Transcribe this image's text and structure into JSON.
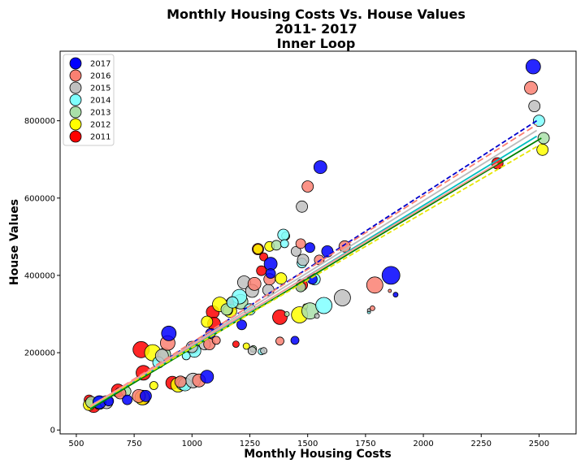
{
  "chart_data": {
    "type": "scatter",
    "title_lines": [
      "Monthly Housing Costs Vs. House Values",
      "2011- 2017",
      "Inner Loop"
    ],
    "xlabel": "Monthly Housing Costs",
    "ylabel": "House Values",
    "xlim": [
      430,
      2660
    ],
    "ylim": [
      -10000,
      980000
    ],
    "xticks": [
      500,
      750,
      1000,
      1250,
      1500,
      1750,
      2000,
      2250,
      2500
    ],
    "yticks": [
      0,
      200000,
      400000,
      600000,
      800000
    ],
    "grid": false,
    "legend_position": "top-left",
    "series": [
      {
        "name": "2017",
        "color": "#0000ff",
        "trend_color": "#0000cc",
        "trend_dash": "6,3",
        "trend": [
          [
            560,
            55000
          ],
          [
            2490,
            800000
          ]
        ],
        "points": [
          [
            2475,
            940000,
            9
          ],
          [
            1555,
            680000,
            8
          ],
          [
            1860,
            400000,
            11
          ],
          [
            1340,
            430000,
            8
          ],
          [
            1585,
            462000,
            7
          ],
          [
            1510,
            472000,
            6
          ],
          [
            1215,
            272000,
            6
          ],
          [
            1445,
            232000,
            5
          ],
          [
            1080,
            250000,
            6
          ],
          [
            1065,
            138000,
            8
          ],
          [
            900,
            250000,
            9
          ],
          [
            800,
            88000,
            7
          ],
          [
            720,
            78000,
            6
          ],
          [
            600,
            72000,
            8
          ],
          [
            1880,
            350000,
            3
          ],
          [
            1340,
            405000,
            6
          ],
          [
            1520,
            390000,
            6
          ],
          [
            640,
            75000,
            6
          ]
        ]
      },
      {
        "name": "2016",
        "color": "#fa8072",
        "trend_color": "#fa8072",
        "trend_dash": "8,4",
        "trend": [
          [
            560,
            60000
          ],
          [
            2490,
            790000
          ]
        ],
        "points": [
          [
            2465,
            885000,
            8
          ],
          [
            1500,
            630000,
            7
          ],
          [
            1790,
            375000,
            10
          ],
          [
            1470,
            482000,
            6
          ],
          [
            1660,
            475000,
            7
          ],
          [
            1550,
            440000,
            6
          ],
          [
            1335,
            390000,
            7
          ],
          [
            1270,
            378000,
            8
          ],
          [
            1075,
            222000,
            7
          ],
          [
            1030,
            128000,
            8
          ],
          [
            895,
            225000,
            9
          ],
          [
            950,
            125000,
            7
          ],
          [
            770,
            88000,
            8
          ],
          [
            1380,
            230000,
            5
          ],
          [
            1105,
            232000,
            5
          ],
          [
            1780,
            315000,
            3
          ],
          [
            1855,
            360000,
            2
          ],
          [
            690,
            95000,
            7
          ]
        ]
      },
      {
        "name": "2015",
        "color": "#c0c0c0",
        "trend_color": "#bbbbbb",
        "trend_dash": "",
        "trend": [
          [
            560,
            58000
          ],
          [
            2490,
            775000
          ]
        ],
        "points": [
          [
            2480,
            838000,
            7
          ],
          [
            1475,
            578000,
            7
          ],
          [
            1650,
            342000,
            10
          ],
          [
            1225,
            382000,
            8
          ],
          [
            1260,
            360000,
            8
          ],
          [
            1450,
            462000,
            6
          ],
          [
            1480,
            440000,
            7
          ],
          [
            1330,
            362000,
            7
          ],
          [
            1000,
            215000,
            7
          ],
          [
            1055,
            222000,
            7
          ],
          [
            870,
            192000,
            8
          ],
          [
            1005,
            128000,
            9
          ],
          [
            1260,
            205000,
            5
          ],
          [
            1310,
            205000,
            4
          ],
          [
            1540,
            295000,
            3
          ],
          [
            1765,
            310000,
            2
          ],
          [
            630,
            72000,
            8
          ]
        ]
      },
      {
        "name": "2014",
        "color": "#7fffff",
        "trend_color": "#00bfbf",
        "trend_dash": "",
        "trend": [
          [
            560,
            55000
          ],
          [
            2490,
            760000
          ]
        ],
        "points": [
          [
            2500,
            800000,
            7
          ],
          [
            1395,
            505000,
            7
          ],
          [
            1570,
            322000,
            10
          ],
          [
            1400,
            482000,
            5
          ],
          [
            1475,
            432000,
            6
          ],
          [
            1530,
            390000,
            7
          ],
          [
            1205,
            345000,
            9
          ],
          [
            1175,
            330000,
            7
          ],
          [
            1250,
            312000,
            7
          ],
          [
            1010,
            205000,
            8
          ],
          [
            975,
            192000,
            5
          ],
          [
            855,
            175000,
            7
          ],
          [
            970,
            118000,
            8
          ],
          [
            1300,
            203000,
            4
          ],
          [
            1765,
            305000,
            2
          ],
          [
            600,
            70000,
            8
          ]
        ]
      },
      {
        "name": "2013",
        "color": "#a9dfa9",
        "trend_color": "#008000",
        "trend_dash": "",
        "trend": [
          [
            560,
            54000
          ],
          [
            2510,
            755000
          ]
        ],
        "points": [
          [
            2520,
            755000,
            7
          ],
          [
            1405,
            502000,
            5
          ],
          [
            1510,
            308000,
            10
          ],
          [
            1365,
            478000,
            6
          ],
          [
            1470,
            370000,
            6
          ],
          [
            1210,
            332000,
            9
          ],
          [
            1150,
            312000,
            7
          ],
          [
            1265,
            210000,
            4
          ],
          [
            1005,
            212000,
            7
          ],
          [
            880,
            195000,
            8
          ],
          [
            960,
            120000,
            8
          ],
          [
            565,
            72000,
            7
          ],
          [
            715,
            100000,
            6
          ],
          [
            1410,
            300000,
            3
          ]
        ]
      },
      {
        "name": "2012",
        "color": "#ffff00",
        "trend_color": "#e6e600",
        "trend_dash": "6,3",
        "trend": [
          [
            560,
            60000
          ],
          [
            2510,
            740000
          ]
        ],
        "points": [
          [
            2515,
            725000,
            7
          ],
          [
            1335,
            475000,
            6
          ],
          [
            1465,
            298000,
            10
          ],
          [
            1385,
            392000,
            7
          ],
          [
            1285,
            468000,
            6
          ],
          [
            1165,
            308000,
            8
          ],
          [
            1120,
            325000,
            9
          ],
          [
            1235,
            217000,
            4
          ],
          [
            1065,
            280000,
            7
          ],
          [
            830,
            200000,
            10
          ],
          [
            835,
            115000,
            5
          ],
          [
            940,
            117000,
            9
          ],
          [
            785,
            84000,
            9
          ],
          [
            555,
            65000,
            7
          ],
          [
            1155,
            310000,
            6
          ],
          [
            1490,
            320000,
            3
          ]
        ]
      },
      {
        "name": "2011",
        "color": "#ff0000",
        "trend_color": "#ff9999",
        "trend_dash": "",
        "trend": [
          [
            560,
            62000
          ],
          [
            2320,
            690000
          ]
        ],
        "points": [
          [
            2320,
            690000,
            7
          ],
          [
            1285,
            468000,
            7
          ],
          [
            1380,
            292000,
            9
          ],
          [
            1475,
            375000,
            7
          ],
          [
            1300,
            412000,
            6
          ],
          [
            1310,
            448000,
            5
          ],
          [
            1090,
            305000,
            8
          ],
          [
            1095,
            275000,
            8
          ],
          [
            1175,
            328000,
            8
          ],
          [
            1190,
            222000,
            4
          ],
          [
            780,
            208000,
            10
          ],
          [
            790,
            148000,
            9
          ],
          [
            915,
            122000,
            8
          ],
          [
            680,
            102000,
            8
          ],
          [
            790,
            82000,
            8
          ],
          [
            555,
            78000,
            6
          ],
          [
            575,
            62000,
            8
          ],
          [
            1490,
            313000,
            2
          ]
        ]
      }
    ]
  }
}
